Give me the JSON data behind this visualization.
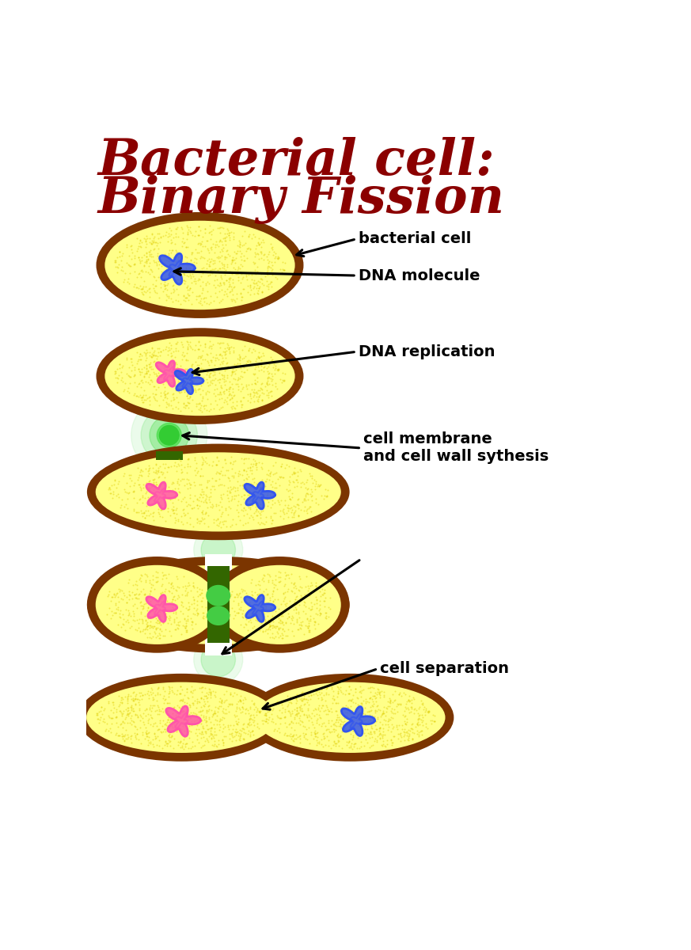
{
  "title_line1": "Bacterial cell:",
  "title_line2": "Binary Fission",
  "title_color": "#8B0000",
  "bg_color": "#ffffff",
  "cell_fill": "#FFFF88",
  "cell_border": "#7B3500",
  "labels": {
    "bacterial_cell": "bacterial cell",
    "dna_molecule": "DNA molecule",
    "dna_replication": "DNA replication",
    "cell_membrane": "cell membrane\nand cell wall sythesis",
    "cell_separation": "cell separation"
  },
  "dna_blue": "#3355EE",
  "dna_pink": "#FF55AA",
  "green_glow": "#44DD44",
  "green_dark": "#336600"
}
